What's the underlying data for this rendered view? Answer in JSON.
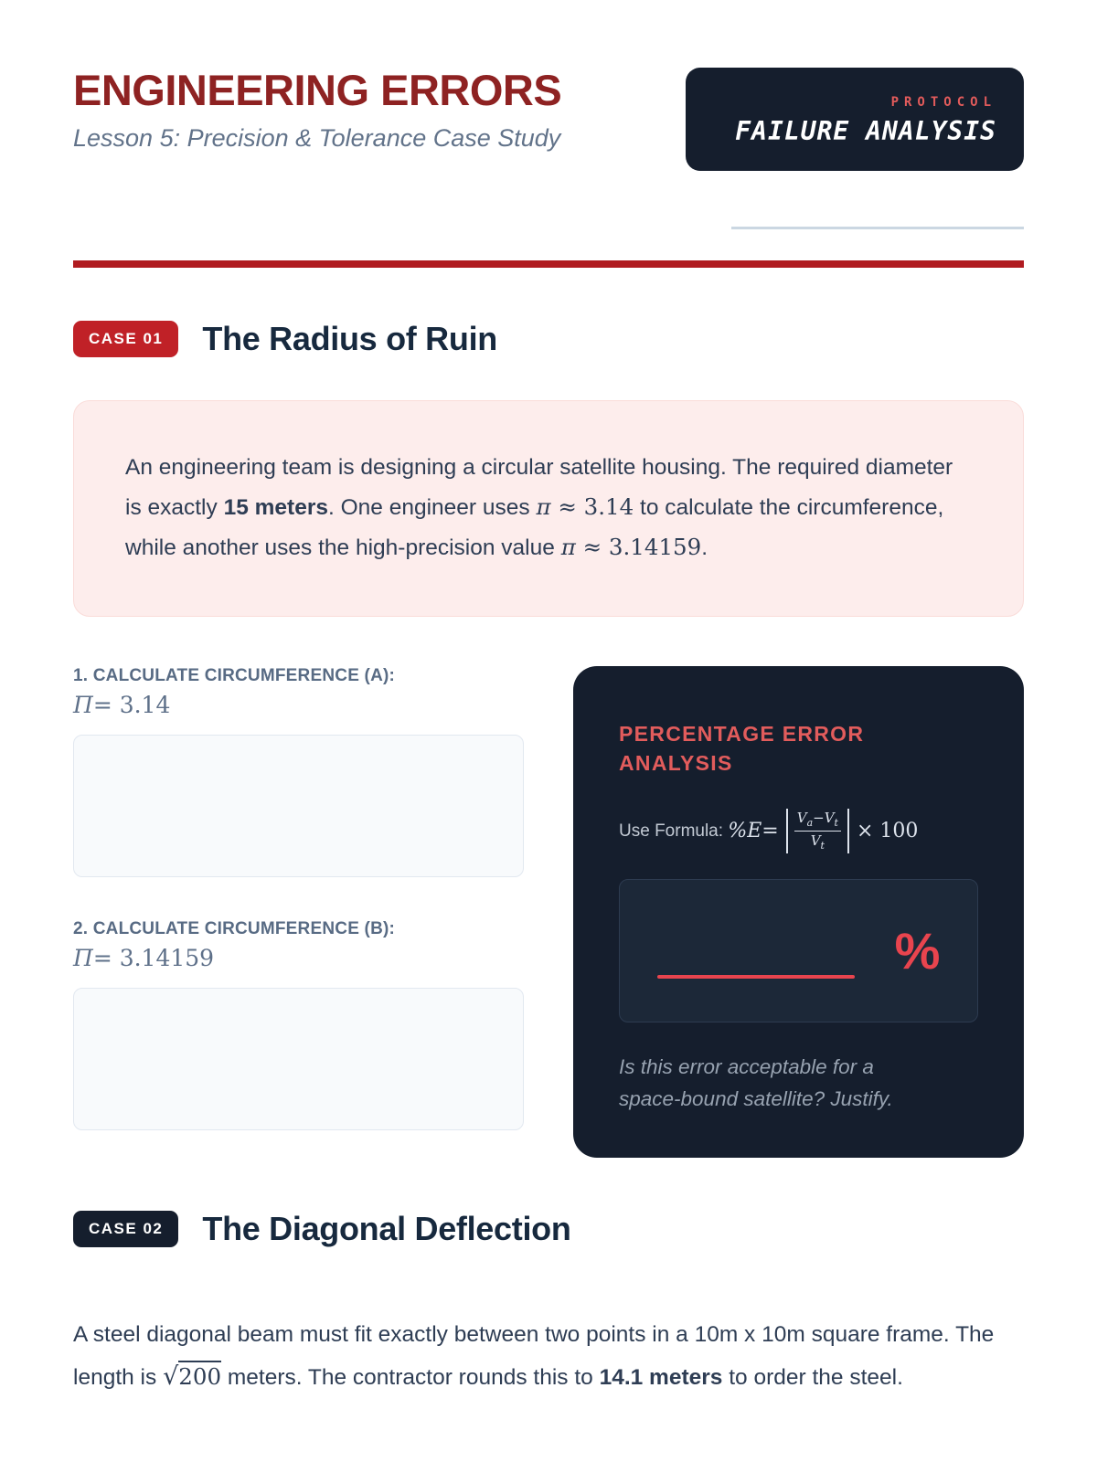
{
  "header": {
    "title": "ENGINEERING ERRORS",
    "subtitle": "Lesson 5: Precision & Tolerance Case Study",
    "badge": {
      "eyebrow": "PROTOCOL",
      "label": "FAILURE ANALYSIS"
    }
  },
  "case1": {
    "badge": "CASE 01",
    "title": "The Radius of Ruin",
    "problem": {
      "text_1": "An engineering team is designing a circular satellite housing. The required diameter is exactly ",
      "bold_1": "15 meters",
      "text_2": ". One engineer uses ",
      "math_1_pi": "π",
      "math_1_rest": " ≈ 3.14",
      "text_3": " to calculate the circumference, while another uses the high-precision value ",
      "math_2_pi": "π",
      "math_2_rest": " ≈ 3.14159",
      "text_4": "."
    },
    "task_a": {
      "label": "1. CALCULATE CIRCUMFERENCE (A):",
      "pi": "Π",
      "value": "= 3.14"
    },
    "task_b": {
      "label": "2. CALCULATE CIRCUMFERENCE (B):",
      "pi": "Π",
      "value": "= 3.14159"
    },
    "analysis": {
      "title": "PERCENTAGE ERROR ANALYSIS",
      "formula_label": "Use Formula: ",
      "formula_pe": "%E",
      "formula_eq": " = ",
      "frac_num_v1": "V",
      "frac_num_sub1": "a",
      "frac_num_v2": "−V",
      "frac_num_sub2": "t",
      "frac_den_v": "V",
      "frac_den_sub": "t",
      "formula_times": "× 100",
      "percent_sign": "%",
      "note": "Is this error acceptable for a space-bound satellite? Justify."
    }
  },
  "case2": {
    "badge": "CASE 02",
    "title": "The Diagonal Deflection",
    "problem": {
      "text_1": "A steel diagonal beam must fit exactly between two points in a 10m x 10m square frame. The length is ",
      "sqrt_sign": "√",
      "radicand": "200",
      "text_2": " meters. The contractor rounds this to ",
      "bold_1": "14.1 meters",
      "text_3": " to order the steel."
    }
  },
  "colors": {
    "title_maroon": "#8e2222",
    "rule_red": "#b01b20",
    "case_badge_red": "#c02127",
    "navy_dark": "#151e2d",
    "heading_navy": "#17293e",
    "panel_accent_red": "#e25c5c",
    "blank_red": "#e8444e",
    "problem_box_pink": "#fdedec",
    "answer_box_gray": "#f8fafc"
  }
}
